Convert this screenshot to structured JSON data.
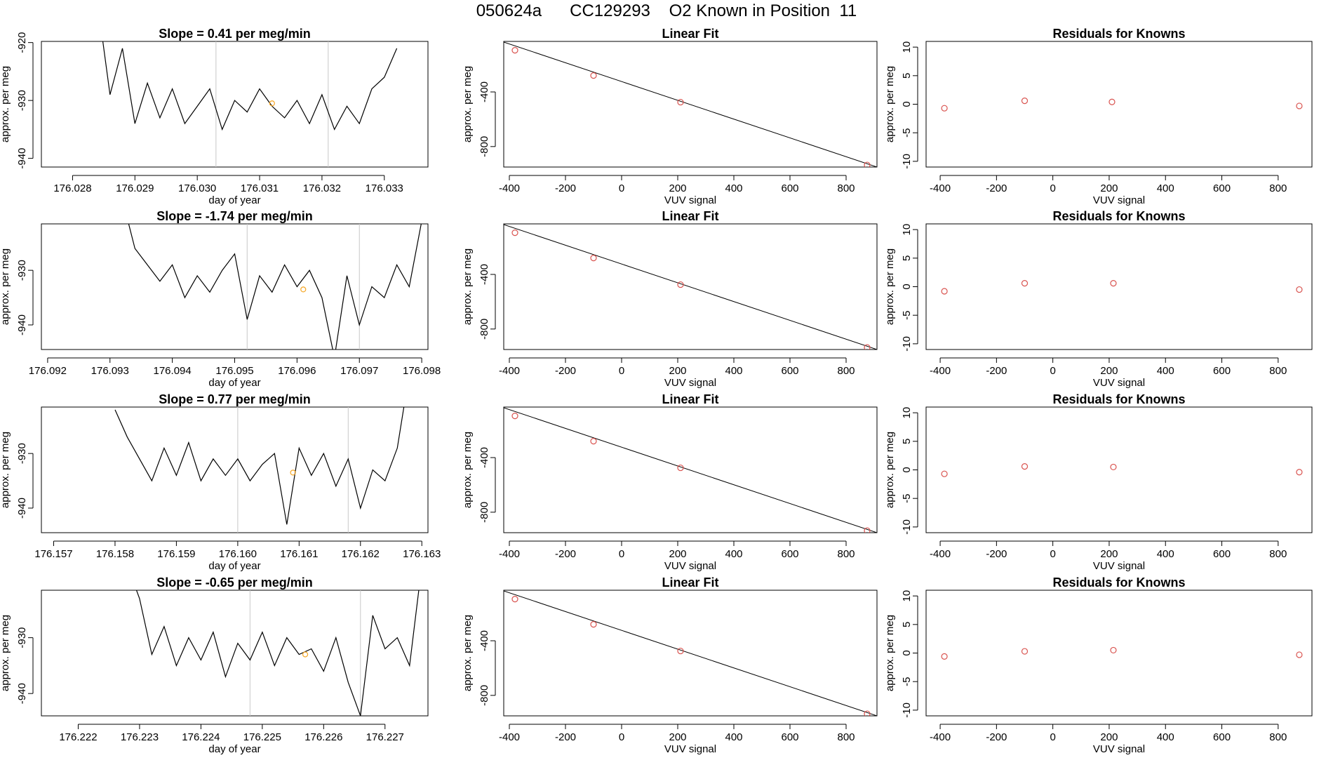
{
  "page_title": "050624a      CC129293    O2 Known in Position  11",
  "colors": {
    "series_line": "#000000",
    "ref_line": "#c8c8c8",
    "marker_orange": "#f5a623",
    "marker_red": "#d9534f",
    "fit_line": "#000000"
  },
  "chart_data": [
    {
      "id": "row1-timeseries",
      "type": "line",
      "title": "Slope =  0.41  per meg/min",
      "xlabel": "day of year",
      "ylabel": "approx. per meg",
      "xlim": [
        176.0275,
        176.0337
      ],
      "ylim": [
        -941.5,
        -919.8
      ],
      "xticks": [
        176.028,
        176.029,
        176.03,
        176.031,
        176.032,
        176.033
      ],
      "xtick_labels": [
        "176.028",
        "176.029",
        "176.030",
        "176.031",
        "176.032",
        "176.033"
      ],
      "yticks": [
        -920,
        -930,
        -940
      ],
      "ytick_labels": [
        "-920",
        "-930",
        "-940"
      ],
      "ref_lines_x": [
        176.0303,
        176.0321
      ],
      "marker": {
        "x": 176.0312,
        "y": -930.5
      },
      "series": [
        {
          "x": [
            176.0284,
            176.0286,
            176.0288,
            176.029,
            176.0292,
            176.0294,
            176.0296,
            176.0298,
            176.03,
            176.0302,
            176.0304,
            176.0306,
            176.0308,
            176.031,
            176.0312,
            176.0314,
            176.0316,
            176.0318,
            176.032,
            176.0322,
            176.0324,
            176.0326,
            176.0328,
            176.033,
            176.0332
          ],
          "y": [
            -913,
            -929,
            -921,
            -934,
            -927,
            -933,
            -928,
            -934,
            -931,
            -928,
            -935,
            -930,
            -932,
            -928,
            -931,
            -933,
            -930,
            -934,
            -929,
            -935,
            -931,
            -934,
            -928,
            -926,
            -921
          ]
        }
      ]
    },
    {
      "id": "row1-linearfit",
      "type": "scatter",
      "title": "Linear Fit",
      "xlabel": "VUV signal",
      "ylabel": "approx. per meg",
      "xlim": [
        -420,
        910
      ],
      "ylim": [
        -950,
        -30
      ],
      "xticks": [
        -400,
        -200,
        0,
        200,
        400,
        600,
        800
      ],
      "xtick_labels": [
        "-400",
        "-200",
        "0",
        "200",
        "400",
        "600",
        "800"
      ],
      "yticks": [
        -400,
        -800
      ],
      "ytick_labels": [
        "-400",
        "-800"
      ],
      "fit_line": {
        "x": [
          -420,
          910
        ],
        "y": [
          -35,
          -950
        ]
      },
      "points": {
        "x": [
          -380,
          -100,
          210,
          875
        ],
        "y": [
          -95,
          -280,
          -475,
          -935
        ]
      }
    },
    {
      "id": "row1-residuals",
      "type": "scatter",
      "title": "Residuals for Knowns",
      "xlabel": "VUV signal",
      "ylabel": "approx. per meg",
      "xlim": [
        -450,
        920
      ],
      "ylim": [
        -11,
        11
      ],
      "xticks": [
        -400,
        -200,
        0,
        200,
        400,
        600,
        800
      ],
      "xtick_labels": [
        "-400",
        "-200",
        "0",
        "200",
        "400",
        "600",
        "800"
      ],
      "yticks": [
        10,
        5,
        0,
        -5,
        -10
      ],
      "ytick_labels": [
        "10",
        "5",
        "0",
        "-5",
        "-10"
      ],
      "points": {
        "x": [
          -385,
          -100,
          210,
          875
        ],
        "y": [
          -0.7,
          0.6,
          0.4,
          -0.3
        ]
      }
    },
    {
      "id": "row2-timeseries",
      "type": "line",
      "title": "Slope =  -1.74  per meg/min",
      "xlabel": "day of year",
      "ylabel": "approx. per meg",
      "xlim": [
        176.0919,
        176.0981
      ],
      "ylim": [
        -944.5,
        -921.5
      ],
      "xticks": [
        176.092,
        176.093,
        176.094,
        176.095,
        176.096,
        176.097,
        176.098
      ],
      "xtick_labels": [
        "176.092",
        "176.093",
        "176.094",
        "176.095",
        "176.096",
        "176.097",
        "176.098"
      ],
      "yticks": [
        -930,
        -940
      ],
      "ytick_labels": [
        "-930",
        "-940"
      ],
      "ref_lines_x": [
        176.0952,
        176.097
      ],
      "marker": {
        "x": 176.0961,
        "y": -933.5
      },
      "series": [
        {
          "x": [
            176.0932,
            176.0934,
            176.0936,
            176.0938,
            176.094,
            176.0942,
            176.0944,
            176.0946,
            176.0948,
            176.095,
            176.0952,
            176.0954,
            176.0956,
            176.0958,
            176.096,
            176.0962,
            176.0964,
            176.0966,
            176.0968,
            176.097,
            176.0972,
            176.0974,
            176.0976,
            176.0978,
            176.098
          ],
          "y": [
            -917,
            -926,
            -929,
            -932,
            -929,
            -935,
            -931,
            -934,
            -930,
            -927,
            -939,
            -931,
            -934,
            -929,
            -933,
            -930,
            -935,
            -946,
            -931,
            -940,
            -933,
            -935,
            -929,
            -933,
            -921
          ]
        }
      ]
    },
    {
      "id": "row2-linearfit",
      "type": "scatter",
      "title": "Linear Fit",
      "xlabel": "VUV signal",
      "ylabel": "approx. per meg",
      "xlim": [
        -420,
        910
      ],
      "ylim": [
        -950,
        -30
      ],
      "xticks": [
        -400,
        -200,
        0,
        200,
        400,
        600,
        800
      ],
      "xtick_labels": [
        "-400",
        "-200",
        "0",
        "200",
        "400",
        "600",
        "800"
      ],
      "yticks": [
        -400,
        -800
      ],
      "ytick_labels": [
        "-400",
        "-800"
      ],
      "fit_line": {
        "x": [
          -420,
          910
        ],
        "y": [
          -35,
          -950
        ]
      },
      "points": {
        "x": [
          -380,
          -100,
          210,
          875
        ],
        "y": [
          -95,
          -280,
          -475,
          -935
        ]
      }
    },
    {
      "id": "row2-residuals",
      "type": "scatter",
      "title": "Residuals for Knowns",
      "xlabel": "VUV signal",
      "ylabel": "approx. per meg",
      "xlim": [
        -450,
        920
      ],
      "ylim": [
        -11,
        11
      ],
      "xticks": [
        -400,
        -200,
        0,
        200,
        400,
        600,
        800
      ],
      "xtick_labels": [
        "-400",
        "-200",
        "0",
        "200",
        "400",
        "600",
        "800"
      ],
      "yticks": [
        10,
        5,
        0,
        -5,
        -10
      ],
      "ytick_labels": [
        "10",
        "5",
        "0",
        "-5",
        "-10"
      ],
      "points": {
        "x": [
          -385,
          -100,
          215,
          875
        ],
        "y": [
          -0.8,
          0.6,
          0.6,
          -0.5
        ]
      }
    },
    {
      "id": "row3-timeseries",
      "type": "line",
      "title": "Slope =  0.77  per meg/min",
      "xlabel": "day of year",
      "ylabel": "approx. per meg",
      "xlim": [
        176.1568,
        176.1631
      ],
      "ylim": [
        -944.5,
        -921.5
      ],
      "xticks": [
        176.157,
        176.158,
        176.159,
        176.16,
        176.161,
        176.162,
        176.163
      ],
      "xtick_labels": [
        "176.157",
        "176.158",
        "176.159",
        "176.160",
        "176.161",
        "176.162",
        "176.163"
      ],
      "yticks": [
        -930,
        -940
      ],
      "ytick_labels": [
        "-930",
        "-940"
      ],
      "ref_lines_x": [
        176.16,
        176.1618
      ],
      "marker": {
        "x": 176.1609,
        "y": -933.5
      },
      "series": [
        {
          "x": [
            176.158,
            176.1582,
            176.1584,
            176.1586,
            176.1588,
            176.159,
            176.1592,
            176.1594,
            176.1596,
            176.1598,
            176.16,
            176.1602,
            176.1604,
            176.1606,
            176.1608,
            176.161,
            176.1612,
            176.1614,
            176.1616,
            176.1618,
            176.162,
            176.1622,
            176.1624,
            176.1626,
            176.1628
          ],
          "y": [
            -922,
            -927,
            -931,
            -935,
            -929,
            -934,
            -928,
            -935,
            -931,
            -934,
            -931,
            -935,
            -932,
            -930,
            -943,
            -929,
            -934,
            -930,
            -936,
            -931,
            -940,
            -933,
            -935,
            -929,
            -915
          ]
        }
      ]
    },
    {
      "id": "row3-linearfit",
      "type": "scatter",
      "title": "Linear Fit",
      "xlabel": "VUV signal",
      "ylabel": "approx. per meg",
      "xlim": [
        -420,
        910
      ],
      "ylim": [
        -950,
        -30
      ],
      "xticks": [
        -400,
        -200,
        0,
        200,
        400,
        600,
        800
      ],
      "xtick_labels": [
        "-400",
        "-200",
        "0",
        "200",
        "400",
        "600",
        "800"
      ],
      "yticks": [
        -400,
        -800
      ],
      "ytick_labels": [
        "-400",
        "-800"
      ],
      "fit_line": {
        "x": [
          -420,
          910
        ],
        "y": [
          -35,
          -950
        ]
      },
      "points": {
        "x": [
          -380,
          -100,
          210,
          875
        ],
        "y": [
          -95,
          -280,
          -475,
          -935
        ]
      }
    },
    {
      "id": "row3-residuals",
      "type": "scatter",
      "title": "Residuals for Knowns",
      "xlabel": "VUV signal",
      "ylabel": "approx. per meg",
      "xlim": [
        -450,
        920
      ],
      "ylim": [
        -11,
        11
      ],
      "xticks": [
        -400,
        -200,
        0,
        200,
        400,
        600,
        800
      ],
      "xtick_labels": [
        "-400",
        "-200",
        "0",
        "200",
        "400",
        "600",
        "800"
      ],
      "yticks": [
        10,
        5,
        0,
        -5,
        -10
      ],
      "ytick_labels": [
        "10",
        "5",
        "0",
        "-5",
        "-10"
      ],
      "points": {
        "x": [
          -385,
          -100,
          215,
          875
        ],
        "y": [
          -0.7,
          0.6,
          0.5,
          -0.4
        ]
      }
    },
    {
      "id": "row4-timeseries",
      "type": "line",
      "title": "Slope =  -0.65  per meg/min",
      "xlabel": "day of year",
      "ylabel": "approx. per meg",
      "xlim": [
        176.2214,
        176.2277
      ],
      "ylim": [
        -944,
        -921.5
      ],
      "xticks": [
        176.222,
        176.223,
        176.224,
        176.225,
        176.226,
        176.227
      ],
      "xtick_labels": [
        "176.222",
        "176.223",
        "176.224",
        "176.225",
        "176.226",
        "176.227"
      ],
      "yticks": [
        -930,
        -940
      ],
      "ytick_labels": [
        "-930",
        "-940"
      ],
      "ref_lines_x": [
        176.2248,
        176.2266
      ],
      "marker": {
        "x": 176.2257,
        "y": -933
      },
      "series": [
        {
          "x": [
            176.2228,
            176.223,
            176.2232,
            176.2234,
            176.2236,
            176.2238,
            176.224,
            176.2242,
            176.2244,
            176.2246,
            176.2248,
            176.225,
            176.2252,
            176.2254,
            176.2256,
            176.2258,
            176.226,
            176.2262,
            176.2264,
            176.2266,
            176.2268,
            176.227,
            176.2272,
            176.2274,
            176.2276
          ],
          "y": [
            -917,
            -923,
            -933,
            -928,
            -935,
            -930,
            -934,
            -929,
            -937,
            -931,
            -934,
            -929,
            -935,
            -930,
            -933,
            -932,
            -936,
            -930,
            -938,
            -944,
            -926,
            -932,
            -930,
            -935,
            -917
          ]
        }
      ]
    },
    {
      "id": "row4-linearfit",
      "type": "scatter",
      "title": "Linear Fit",
      "xlabel": "VUV signal",
      "ylabel": "approx. per meg",
      "xlim": [
        -420,
        910
      ],
      "ylim": [
        -950,
        -30
      ],
      "xticks": [
        -400,
        -200,
        0,
        200,
        400,
        600,
        800
      ],
      "xtick_labels": [
        "-400",
        "-200",
        "0",
        "200",
        "400",
        "600",
        "800"
      ],
      "yticks": [
        -400,
        -800
      ],
      "ytick_labels": [
        "-400",
        "-800"
      ],
      "fit_line": {
        "x": [
          -420,
          910
        ],
        "y": [
          -35,
          -950
        ]
      },
      "points": {
        "x": [
          -380,
          -100,
          210,
          875
        ],
        "y": [
          -95,
          -280,
          -475,
          -935
        ]
      }
    },
    {
      "id": "row4-residuals",
      "type": "scatter",
      "title": "Residuals for Knowns",
      "xlabel": "VUV signal",
      "ylabel": "approx. per meg",
      "xlim": [
        -450,
        920
      ],
      "ylim": [
        -11,
        11
      ],
      "xticks": [
        -400,
        -200,
        0,
        200,
        400,
        600,
        800
      ],
      "xtick_labels": [
        "-400",
        "-200",
        "0",
        "200",
        "400",
        "600",
        "800"
      ],
      "yticks": [
        10,
        5,
        0,
        -5,
        -10
      ],
      "ytick_labels": [
        "10",
        "5",
        "0",
        "-5",
        "-10"
      ],
      "points": {
        "x": [
          -385,
          -100,
          215,
          875
        ],
        "y": [
          -0.6,
          0.3,
          0.5,
          -0.3
        ]
      }
    }
  ]
}
